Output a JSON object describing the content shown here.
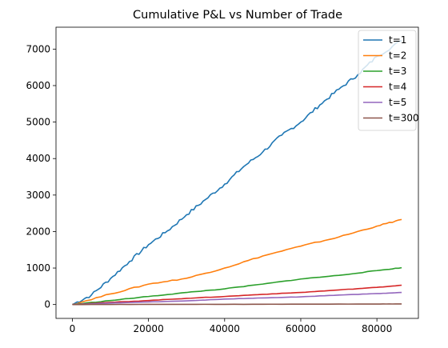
{
  "chart_data": {
    "type": "line",
    "title": "Cumulative P&L vs Number of Trade",
    "xlabel": "",
    "ylabel": "",
    "xlim": [
      -4300,
      90900
    ],
    "ylim": [
      -380,
      7600
    ],
    "xticks": [
      0,
      20000,
      40000,
      60000,
      80000
    ],
    "yticks": [
      0,
      1000,
      2000,
      3000,
      4000,
      5000,
      6000,
      7000
    ],
    "grid": false,
    "legend_position": "upper right",
    "series": [
      {
        "name": "t=1",
        "color": "#1f77b4",
        "x": [
          0,
          5000,
          10000,
          15000,
          20000,
          25000,
          30000,
          35000,
          40000,
          45000,
          50000,
          55000,
          60000,
          65000,
          70000,
          75000,
          80000,
          86500
        ],
        "values": [
          0,
          260,
          710,
          1180,
          1640,
          2020,
          2460,
          2880,
          3300,
          3780,
          4180,
          4640,
          5000,
          5470,
          5900,
          6300,
          6800,
          7230
        ]
      },
      {
        "name": "t=2",
        "color": "#ff7f0e",
        "x": [
          0,
          10000,
          20000,
          30000,
          40000,
          50000,
          60000,
          70000,
          80000,
          86500
        ],
        "values": [
          0,
          290,
          560,
          720,
          1000,
          1330,
          1600,
          1850,
          2150,
          2330
        ]
      },
      {
        "name": "t=3",
        "color": "#2ca02c",
        "x": [
          0,
          10000,
          20000,
          30000,
          40000,
          50000,
          60000,
          70000,
          80000,
          86500
        ],
        "values": [
          0,
          110,
          220,
          330,
          430,
          560,
          700,
          800,
          930,
          1010
        ]
      },
      {
        "name": "t=4",
        "color": "#d62728",
        "x": [
          0,
          10000,
          20000,
          30000,
          40000,
          50000,
          60000,
          70000,
          80000,
          86500
        ],
        "values": [
          0,
          60,
          110,
          170,
          220,
          280,
          330,
          400,
          470,
          530
        ]
      },
      {
        "name": "t=5",
        "color": "#9467bd",
        "x": [
          0,
          10000,
          20000,
          30000,
          40000,
          50000,
          60000,
          70000,
          80000,
          86500
        ],
        "values": [
          0,
          40,
          70,
          100,
          150,
          180,
          210,
          260,
          300,
          330
        ]
      },
      {
        "name": "t=300",
        "color": "#8c564b",
        "x": [
          0,
          20000,
          40000,
          60000,
          80000,
          86500
        ],
        "values": [
          0,
          4,
          6,
          10,
          14,
          16
        ]
      }
    ]
  }
}
